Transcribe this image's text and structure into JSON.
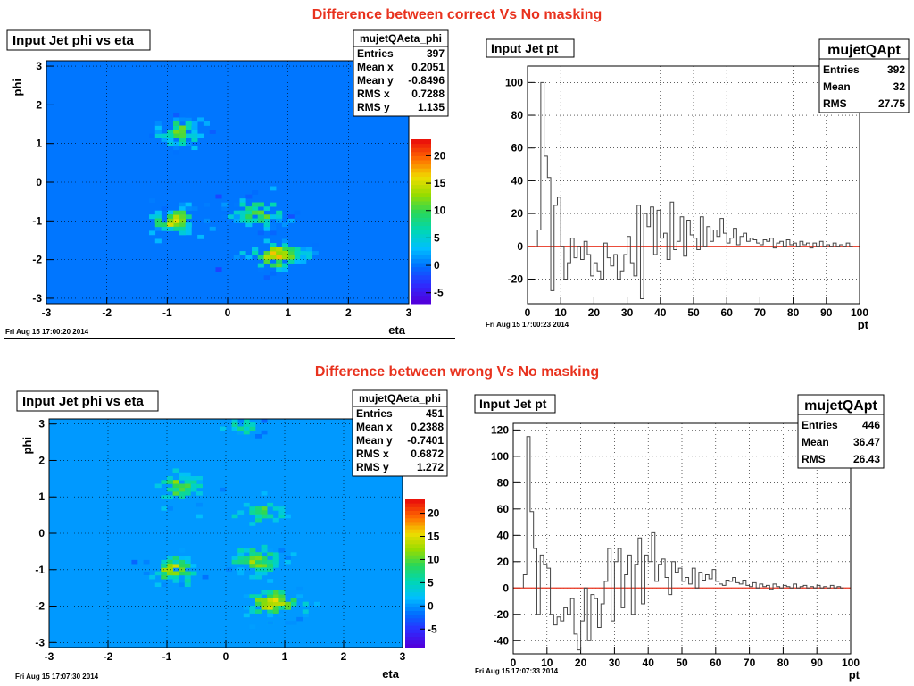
{
  "sections": [
    {
      "title": "Difference between correct Vs No masking"
    },
    {
      "title": "Difference between wrong Vs No masking"
    }
  ],
  "colors": {
    "title": "#e8321e",
    "hist_line": "#444444",
    "zero_line": "#e8321e",
    "frame_bg": "#1e8cff"
  },
  "chart_data": [
    {
      "id": "top-2d",
      "type": "heatmap",
      "title": "Input Jet phi vs eta",
      "xlabel": "eta",
      "ylabel": "phi",
      "xlim": [
        -3,
        3
      ],
      "ylim": [
        -3.14,
        3.14
      ],
      "x_ticks": [
        -3,
        -2,
        -1,
        0,
        1,
        2,
        3
      ],
      "y_ticks": [
        3,
        2,
        1,
        0,
        -1,
        -2,
        -3
      ],
      "z_range": [
        -7,
        23
      ],
      "z_ticks": [
        20,
        15,
        10,
        5,
        0,
        -5
      ],
      "grid": true,
      "timestamp": "Fri Aug 15 17:00:20 2014",
      "stats": {
        "name": "mujetQAeta_phi",
        "rows": [
          [
            "Entries",
            "397"
          ],
          [
            "Mean x",
            "0.2051"
          ],
          [
            "Mean y",
            "-0.8496"
          ],
          [
            "RMS x",
            "0.7288"
          ],
          [
            "RMS y",
            "1.135"
          ]
        ]
      },
      "clusters": [
        {
          "eta": -0.8,
          "phi": 1.3,
          "seta": 0.22,
          "sphi": 0.22,
          "peak": 10,
          "n": 60
        },
        {
          "eta": -0.9,
          "phi": -1.0,
          "seta": 0.22,
          "sphi": 0.2,
          "peak": 14,
          "n": 70
        },
        {
          "eta": 0.5,
          "phi": -0.8,
          "seta": 0.25,
          "sphi": 0.22,
          "peak": 11,
          "n": 70
        },
        {
          "eta": 0.8,
          "phi": -1.9,
          "seta": 0.28,
          "sphi": 0.2,
          "peak": 16,
          "n": 80
        }
      ]
    },
    {
      "id": "top-1d",
      "type": "line",
      "title": "Input Jet pt",
      "xlabel": "pt",
      "ylabel": "",
      "xlim": [
        0,
        100
      ],
      "ylim": [
        -35,
        110
      ],
      "x_ticks": [
        0,
        10,
        20,
        30,
        40,
        50,
        60,
        70,
        80,
        90,
        100
      ],
      "y_ticks": [
        100,
        80,
        60,
        40,
        20,
        0,
        -20
      ],
      "grid": true,
      "timestamp": "Fri Aug 15 17:00:23 2014",
      "stats": {
        "name": "mujetQApt",
        "rows": [
          [
            "Entries",
            "392"
          ],
          [
            "Mean",
            "32"
          ],
          [
            "RMS",
            "27.75"
          ]
        ]
      },
      "x": [
        3,
        4,
        5,
        6,
        7,
        8,
        9,
        10,
        11,
        12,
        13,
        14,
        15,
        16,
        17,
        18,
        19,
        20,
        21,
        22,
        23,
        24,
        25,
        26,
        27,
        28,
        29,
        30,
        31,
        32,
        33,
        34,
        35,
        36,
        37,
        38,
        39,
        40,
        41,
        42,
        43,
        44,
        45,
        46,
        47,
        48,
        49,
        50,
        51,
        52,
        53,
        54,
        55,
        56,
        57,
        58,
        59,
        60,
        61,
        62,
        63,
        64,
        65,
        66,
        67,
        68,
        69,
        70,
        71,
        72,
        73,
        74,
        75,
        76,
        77,
        78,
        79,
        80,
        81,
        82,
        83,
        84,
        85,
        86,
        87,
        88,
        89,
        90,
        91,
        92,
        93,
        94,
        95,
        96,
        97
      ],
      "values": [
        10,
        100,
        55,
        42,
        -27,
        25,
        30,
        0,
        -20,
        -10,
        5,
        -7,
        0,
        -8,
        3,
        -5,
        -18,
        -10,
        -15,
        -20,
        2,
        -7,
        -12,
        -5,
        -20,
        -15,
        -5,
        6,
        -10,
        -18,
        25,
        -32,
        20,
        12,
        24,
        -5,
        22,
        5,
        8,
        -8,
        27,
        -2,
        3,
        18,
        -6,
        16,
        7,
        5,
        -2,
        18,
        0,
        12,
        3,
        10,
        6,
        17,
        8,
        2,
        5,
        11,
        1,
        6,
        8,
        3,
        5,
        4,
        2,
        1,
        4,
        3,
        5,
        -1,
        2,
        3,
        0,
        4,
        1,
        2,
        0,
        3,
        1,
        2,
        -1,
        2,
        0,
        3,
        0,
        1,
        0,
        2,
        0,
        1,
        0,
        2,
        0
      ]
    },
    {
      "id": "bottom-2d",
      "type": "heatmap",
      "title": "Input Jet phi vs eta",
      "xlabel": "eta",
      "ylabel": "phi",
      "xlim": [
        -3,
        3
      ],
      "ylim": [
        -3.14,
        3.14
      ],
      "x_ticks": [
        -3,
        -2,
        -1,
        0,
        1,
        2,
        3
      ],
      "y_ticks": [
        3,
        2,
        1,
        0,
        -1,
        -2,
        -3
      ],
      "z_range": [
        -9,
        23
      ],
      "z_ticks": [
        20,
        15,
        10,
        5,
        0,
        -5
      ],
      "grid": true,
      "timestamp": "Fri Aug 15 17:07:30 2014",
      "stats": {
        "name": "mujetQAeta_phi",
        "rows": [
          [
            "Entries",
            "451"
          ],
          [
            "Mean x",
            "0.2388"
          ],
          [
            "Mean y",
            "-0.7401"
          ],
          [
            "RMS x",
            "0.6872"
          ],
          [
            "RMS y",
            "1.272"
          ]
        ]
      },
      "clusters": [
        {
          "eta": -0.8,
          "phi": 1.3,
          "seta": 0.22,
          "sphi": 0.2,
          "peak": 11,
          "n": 60
        },
        {
          "eta": -0.9,
          "phi": -1.0,
          "seta": 0.22,
          "sphi": 0.2,
          "peak": 14,
          "n": 70
        },
        {
          "eta": 0.6,
          "phi": 0.6,
          "seta": 0.25,
          "sphi": 0.15,
          "peak": 9,
          "n": 40
        },
        {
          "eta": 0.5,
          "phi": -0.8,
          "seta": 0.25,
          "sphi": 0.22,
          "peak": 11,
          "n": 70
        },
        {
          "eta": 0.8,
          "phi": -1.9,
          "seta": 0.28,
          "sphi": 0.2,
          "peak": 16,
          "n": 80
        },
        {
          "eta": 0.3,
          "phi": 2.9,
          "seta": 0.2,
          "sphi": 0.12,
          "peak": 5,
          "n": 25
        }
      ]
    },
    {
      "id": "bottom-1d",
      "type": "line",
      "title": "Input Jet pt",
      "xlabel": "pt",
      "ylabel": "",
      "xlim": [
        0,
        100
      ],
      "ylim": [
        -50,
        125
      ],
      "x_ticks": [
        0,
        10,
        20,
        30,
        40,
        50,
        60,
        70,
        80,
        90,
        100
      ],
      "y_ticks": [
        120,
        100,
        80,
        60,
        40,
        20,
        0,
        -20,
        -40
      ],
      "grid": true,
      "timestamp": "Fri Aug 15 17:07:33 2014",
      "stats": {
        "name": "mujetQApt",
        "rows": [
          [
            "Entries",
            "446"
          ],
          [
            "Mean",
            "36.47"
          ],
          [
            "RMS",
            "26.43"
          ]
        ]
      },
      "x": [
        3,
        4,
        5,
        6,
        7,
        8,
        9,
        10,
        11,
        12,
        13,
        14,
        15,
        16,
        17,
        18,
        19,
        20,
        21,
        22,
        23,
        24,
        25,
        26,
        27,
        28,
        29,
        30,
        31,
        32,
        33,
        34,
        35,
        36,
        37,
        38,
        39,
        40,
        41,
        42,
        43,
        44,
        45,
        46,
        47,
        48,
        49,
        50,
        51,
        52,
        53,
        54,
        55,
        56,
        57,
        58,
        59,
        60,
        61,
        62,
        63,
        64,
        65,
        66,
        67,
        68,
        69,
        70,
        71,
        72,
        73,
        74,
        75,
        76,
        77,
        78,
        79,
        80,
        81,
        82,
        83,
        84,
        85,
        86,
        87,
        88,
        89,
        90,
        91,
        92,
        93,
        94,
        95,
        96,
        97
      ],
      "values": [
        10,
        115,
        58,
        30,
        -20,
        25,
        18,
        15,
        -20,
        -28,
        -22,
        -25,
        -15,
        -20,
        -8,
        -35,
        -47,
        -25,
        0,
        -40,
        -5,
        -8,
        -30,
        -12,
        5,
        30,
        -25,
        20,
        30,
        -15,
        10,
        25,
        -20,
        18,
        38,
        -12,
        25,
        20,
        42,
        5,
        18,
        22,
        8,
        -5,
        20,
        12,
        15,
        5,
        8,
        3,
        15,
        0,
        12,
        6,
        10,
        7,
        14,
        5,
        3,
        2,
        6,
        5,
        8,
        4,
        3,
        6,
        2,
        1,
        4,
        0,
        3,
        1,
        2,
        -1,
        3,
        1,
        0,
        2,
        1,
        0,
        3,
        0,
        1,
        2,
        0,
        1,
        0,
        2,
        0,
        1,
        0,
        2,
        0,
        1,
        0
      ]
    }
  ]
}
